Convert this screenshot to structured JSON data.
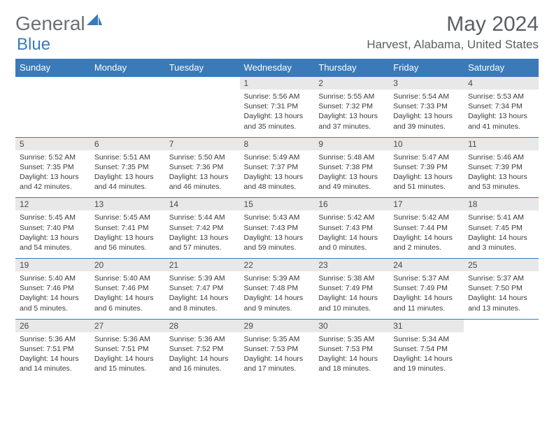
{
  "logo": {
    "part1": "General",
    "part2": "Blue"
  },
  "title": "May 2024",
  "location": "Harvest, Alabama, United States",
  "colors": {
    "header_bg": "#3a7ab8",
    "header_text": "#ffffff",
    "daynum_bg": "#e8e8e8",
    "border": "#3a7ab8",
    "logo_gray": "#6b7074",
    "logo_blue": "#3a7ab8",
    "text": "#3a3a3a"
  },
  "daynames": [
    "Sunday",
    "Monday",
    "Tuesday",
    "Wednesday",
    "Thursday",
    "Friday",
    "Saturday"
  ],
  "weeks": [
    [
      null,
      null,
      null,
      {
        "n": "1",
        "sr": "5:56 AM",
        "ss": "7:31 PM",
        "dl": "13 hours and 35 minutes."
      },
      {
        "n": "2",
        "sr": "5:55 AM",
        "ss": "7:32 PM",
        "dl": "13 hours and 37 minutes."
      },
      {
        "n": "3",
        "sr": "5:54 AM",
        "ss": "7:33 PM",
        "dl": "13 hours and 39 minutes."
      },
      {
        "n": "4",
        "sr": "5:53 AM",
        "ss": "7:34 PM",
        "dl": "13 hours and 41 minutes."
      }
    ],
    [
      {
        "n": "5",
        "sr": "5:52 AM",
        "ss": "7:35 PM",
        "dl": "13 hours and 42 minutes."
      },
      {
        "n": "6",
        "sr": "5:51 AM",
        "ss": "7:35 PM",
        "dl": "13 hours and 44 minutes."
      },
      {
        "n": "7",
        "sr": "5:50 AM",
        "ss": "7:36 PM",
        "dl": "13 hours and 46 minutes."
      },
      {
        "n": "8",
        "sr": "5:49 AM",
        "ss": "7:37 PM",
        "dl": "13 hours and 48 minutes."
      },
      {
        "n": "9",
        "sr": "5:48 AM",
        "ss": "7:38 PM",
        "dl": "13 hours and 49 minutes."
      },
      {
        "n": "10",
        "sr": "5:47 AM",
        "ss": "7:39 PM",
        "dl": "13 hours and 51 minutes."
      },
      {
        "n": "11",
        "sr": "5:46 AM",
        "ss": "7:39 PM",
        "dl": "13 hours and 53 minutes."
      }
    ],
    [
      {
        "n": "12",
        "sr": "5:45 AM",
        "ss": "7:40 PM",
        "dl": "13 hours and 54 minutes."
      },
      {
        "n": "13",
        "sr": "5:45 AM",
        "ss": "7:41 PM",
        "dl": "13 hours and 56 minutes."
      },
      {
        "n": "14",
        "sr": "5:44 AM",
        "ss": "7:42 PM",
        "dl": "13 hours and 57 minutes."
      },
      {
        "n": "15",
        "sr": "5:43 AM",
        "ss": "7:43 PM",
        "dl": "13 hours and 59 minutes."
      },
      {
        "n": "16",
        "sr": "5:42 AM",
        "ss": "7:43 PM",
        "dl": "14 hours and 0 minutes."
      },
      {
        "n": "17",
        "sr": "5:42 AM",
        "ss": "7:44 PM",
        "dl": "14 hours and 2 minutes."
      },
      {
        "n": "18",
        "sr": "5:41 AM",
        "ss": "7:45 PM",
        "dl": "14 hours and 3 minutes."
      }
    ],
    [
      {
        "n": "19",
        "sr": "5:40 AM",
        "ss": "7:46 PM",
        "dl": "14 hours and 5 minutes."
      },
      {
        "n": "20",
        "sr": "5:40 AM",
        "ss": "7:46 PM",
        "dl": "14 hours and 6 minutes."
      },
      {
        "n": "21",
        "sr": "5:39 AM",
        "ss": "7:47 PM",
        "dl": "14 hours and 8 minutes."
      },
      {
        "n": "22",
        "sr": "5:39 AM",
        "ss": "7:48 PM",
        "dl": "14 hours and 9 minutes."
      },
      {
        "n": "23",
        "sr": "5:38 AM",
        "ss": "7:49 PM",
        "dl": "14 hours and 10 minutes."
      },
      {
        "n": "24",
        "sr": "5:37 AM",
        "ss": "7:49 PM",
        "dl": "14 hours and 11 minutes."
      },
      {
        "n": "25",
        "sr": "5:37 AM",
        "ss": "7:50 PM",
        "dl": "14 hours and 13 minutes."
      }
    ],
    [
      {
        "n": "26",
        "sr": "5:36 AM",
        "ss": "7:51 PM",
        "dl": "14 hours and 14 minutes."
      },
      {
        "n": "27",
        "sr": "5:36 AM",
        "ss": "7:51 PM",
        "dl": "14 hours and 15 minutes."
      },
      {
        "n": "28",
        "sr": "5:36 AM",
        "ss": "7:52 PM",
        "dl": "14 hours and 16 minutes."
      },
      {
        "n": "29",
        "sr": "5:35 AM",
        "ss": "7:53 PM",
        "dl": "14 hours and 17 minutes."
      },
      {
        "n": "30",
        "sr": "5:35 AM",
        "ss": "7:53 PM",
        "dl": "14 hours and 18 minutes."
      },
      {
        "n": "31",
        "sr": "5:34 AM",
        "ss": "7:54 PM",
        "dl": "14 hours and 19 minutes."
      },
      null
    ]
  ],
  "labels": {
    "sunrise": "Sunrise: ",
    "sunset": "Sunset: ",
    "daylight": "Daylight: "
  }
}
